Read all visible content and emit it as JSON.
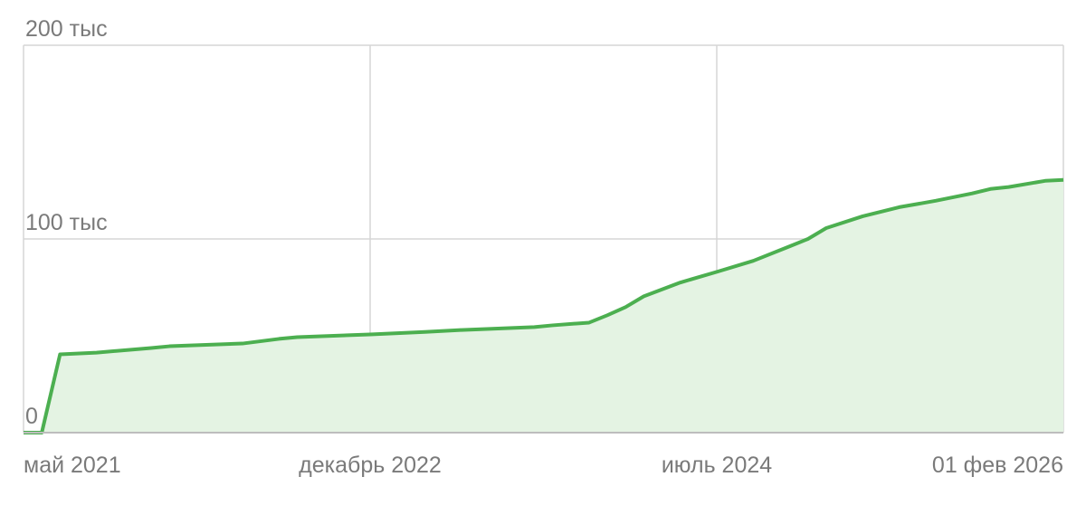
{
  "chart_data": {
    "type": "line",
    "x": [
      "2021-05",
      "2021-06",
      "2021-07",
      "2021-09",
      "2021-12",
      "2022-01",
      "2022-02",
      "2022-05",
      "2022-07",
      "2022-08",
      "2022-12",
      "2023-03",
      "2023-05",
      "2023-09",
      "2023-10",
      "2023-12",
      "2024-01",
      "2024-02",
      "2024-03",
      "2024-05",
      "2024-07",
      "2024-09",
      "2024-11",
      "2024-12",
      "2025-01",
      "2025-03",
      "2025-05",
      "2025-07",
      "2025-09",
      "2025-10",
      "2025-11",
      "2026-01",
      "2026-02"
    ],
    "series": [
      {
        "color": "#4caf50",
        "fill": "#e4f3e3",
        "values": [
          0,
          0,
          40400,
          41300,
          43700,
          44600,
          45000,
          46000,
          48400,
          49300,
          50700,
          52000,
          53000,
          54500,
          55400,
          56800,
          60600,
          64800,
          70400,
          77500,
          83000,
          88700,
          96200,
          100000,
          105600,
          111700,
          116400,
          119700,
          123500,
          125800,
          126800,
          130000,
          130500
        ]
      }
    ],
    "xlim": [
      "2021-05",
      "2026-02"
    ],
    "xticks": [
      {
        "value": "2021-05",
        "label": "май 2021"
      },
      {
        "value": "2022-12",
        "label": "декабрь 2022"
      },
      {
        "value": "2024-07",
        "label": "июль 2024"
      },
      {
        "value": "2026-02-01",
        "label": "01 фев 2026"
      }
    ],
    "ylim": [
      0,
      200000
    ],
    "yticks": [
      0,
      {
        "value": 100000,
        "label": "100 тыс"
      },
      {
        "value": 200000,
        "label": "200 тыс"
      }
    ],
    "grid": true
  }
}
